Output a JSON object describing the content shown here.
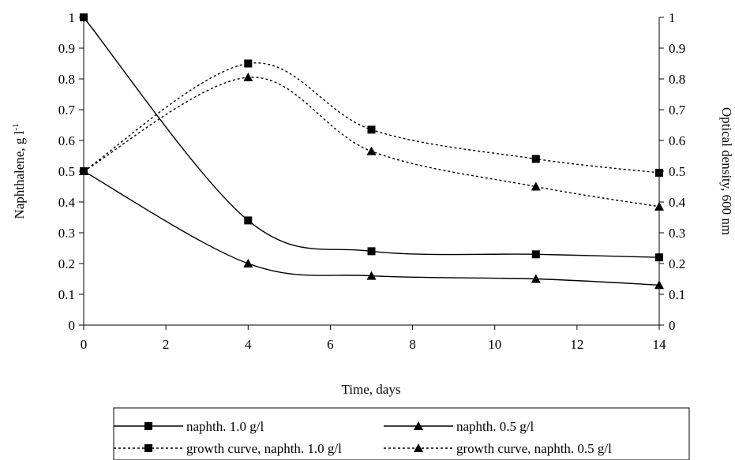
{
  "chart_data": {
    "type": "line",
    "title": "",
    "xlabel": "Time, days",
    "ylabel_left": "Naphthalene, g l",
    "ylabel_left_superscript": "-1",
    "ylabel_right": "Optical density, 600 nm",
    "xlim": [
      0,
      14
    ],
    "ylim": [
      0,
      1
    ],
    "y2lim": [
      0,
      1
    ],
    "x_ticks": [
      "0",
      "2",
      "4",
      "6",
      "8",
      "10",
      "12",
      "14"
    ],
    "y_ticks": [
      "0",
      "0.1",
      "0.2",
      "0.3",
      "0.4",
      "0.5",
      "0.6",
      "0.7",
      "0.8",
      "0.9",
      "1"
    ],
    "y2_ticks": [
      "0",
      "0.1",
      "0.2",
      "0.3",
      "0.4",
      "0.5",
      "0.6",
      "0.7",
      "0.8",
      "0.9",
      "1"
    ],
    "grid": false,
    "legend_position": "bottom",
    "series": [
      {
        "name": "naphth. 1.0 g/l",
        "axis": "left",
        "marker": "square",
        "line": "solid",
        "color": "#000000",
        "x": [
          0,
          4,
          7,
          11,
          14
        ],
        "y": [
          1.0,
          0.34,
          0.24,
          0.23,
          0.22
        ]
      },
      {
        "name": "naphth. 0.5 g/l",
        "axis": "left",
        "marker": "triangle",
        "line": "solid",
        "color": "#000000",
        "x": [
          0,
          4,
          7,
          11,
          14
        ],
        "y": [
          0.5,
          0.2,
          0.16,
          0.15,
          0.13
        ]
      },
      {
        "name": "growth curve, naphth. 1.0 g/l",
        "axis": "right",
        "marker": "square",
        "line": "dotted",
        "color": "#000000",
        "x": [
          0,
          4,
          7,
          11,
          14
        ],
        "y": [
          0.5,
          0.85,
          0.635,
          0.54,
          0.495
        ]
      },
      {
        "name": "growth curve, naphth. 0.5 g/l",
        "axis": "right",
        "marker": "triangle",
        "line": "dotted",
        "color": "#000000",
        "x": [
          0,
          4,
          7,
          11,
          14
        ],
        "y": [
          0.5,
          0.805,
          0.565,
          0.45,
          0.385
        ]
      }
    ]
  }
}
